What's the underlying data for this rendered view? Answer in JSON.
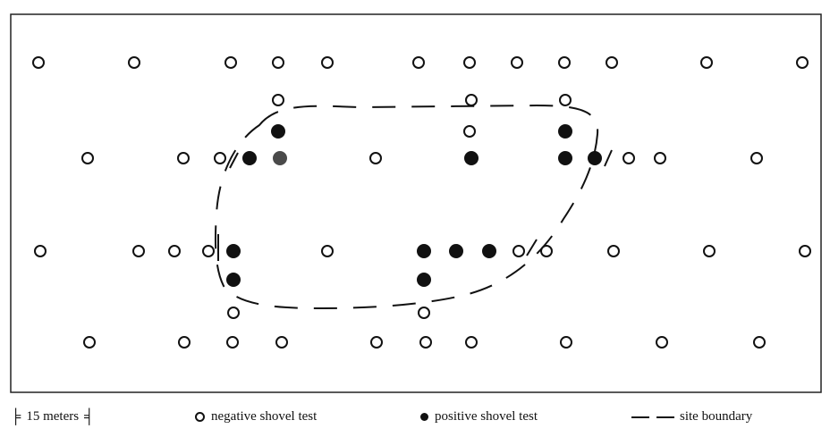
{
  "legend": {
    "scale_label": "15 meters",
    "negative_label": "negative shovel test",
    "positive_label": "positive shovel test",
    "boundary_label": "site boundary"
  },
  "colors": {
    "ink": "#111111",
    "positive_alt": "#4a4a4a",
    "frame": "#222222"
  },
  "rows": [
    {
      "id": "r1",
      "tests": [
        "negative",
        "negative",
        "negative",
        "negative",
        "negative",
        "negative",
        "negative",
        "negative",
        "negative",
        "negative",
        "negative",
        "negative"
      ]
    },
    {
      "id": "r2",
      "tests": [
        "negative",
        "negative",
        "negative"
      ]
    },
    {
      "id": "r3",
      "tests": [
        "positive",
        "negative",
        "positive"
      ]
    },
    {
      "id": "r4",
      "tests": [
        "negative",
        "negative",
        "negative",
        "positive",
        "positive-alt",
        "negative",
        "positive",
        "positive",
        "positive",
        "negative",
        "negative",
        "negative"
      ]
    },
    {
      "id": "r5",
      "tests": [
        "negative",
        "negative",
        "negative",
        "negative",
        "positive",
        "negative",
        "positive",
        "positive",
        "positive",
        "negative",
        "negative",
        "negative",
        "negative",
        "negative"
      ]
    },
    {
      "id": "r6",
      "tests": [
        "positive",
        "positive"
      ]
    },
    {
      "id": "r7",
      "tests": [
        "negative",
        "negative"
      ]
    },
    {
      "id": "r8",
      "tests": [
        "negative",
        "negative",
        "negative",
        "negative",
        "negative",
        "negative",
        "negative",
        "negative",
        "negative",
        "negative"
      ]
    }
  ]
}
